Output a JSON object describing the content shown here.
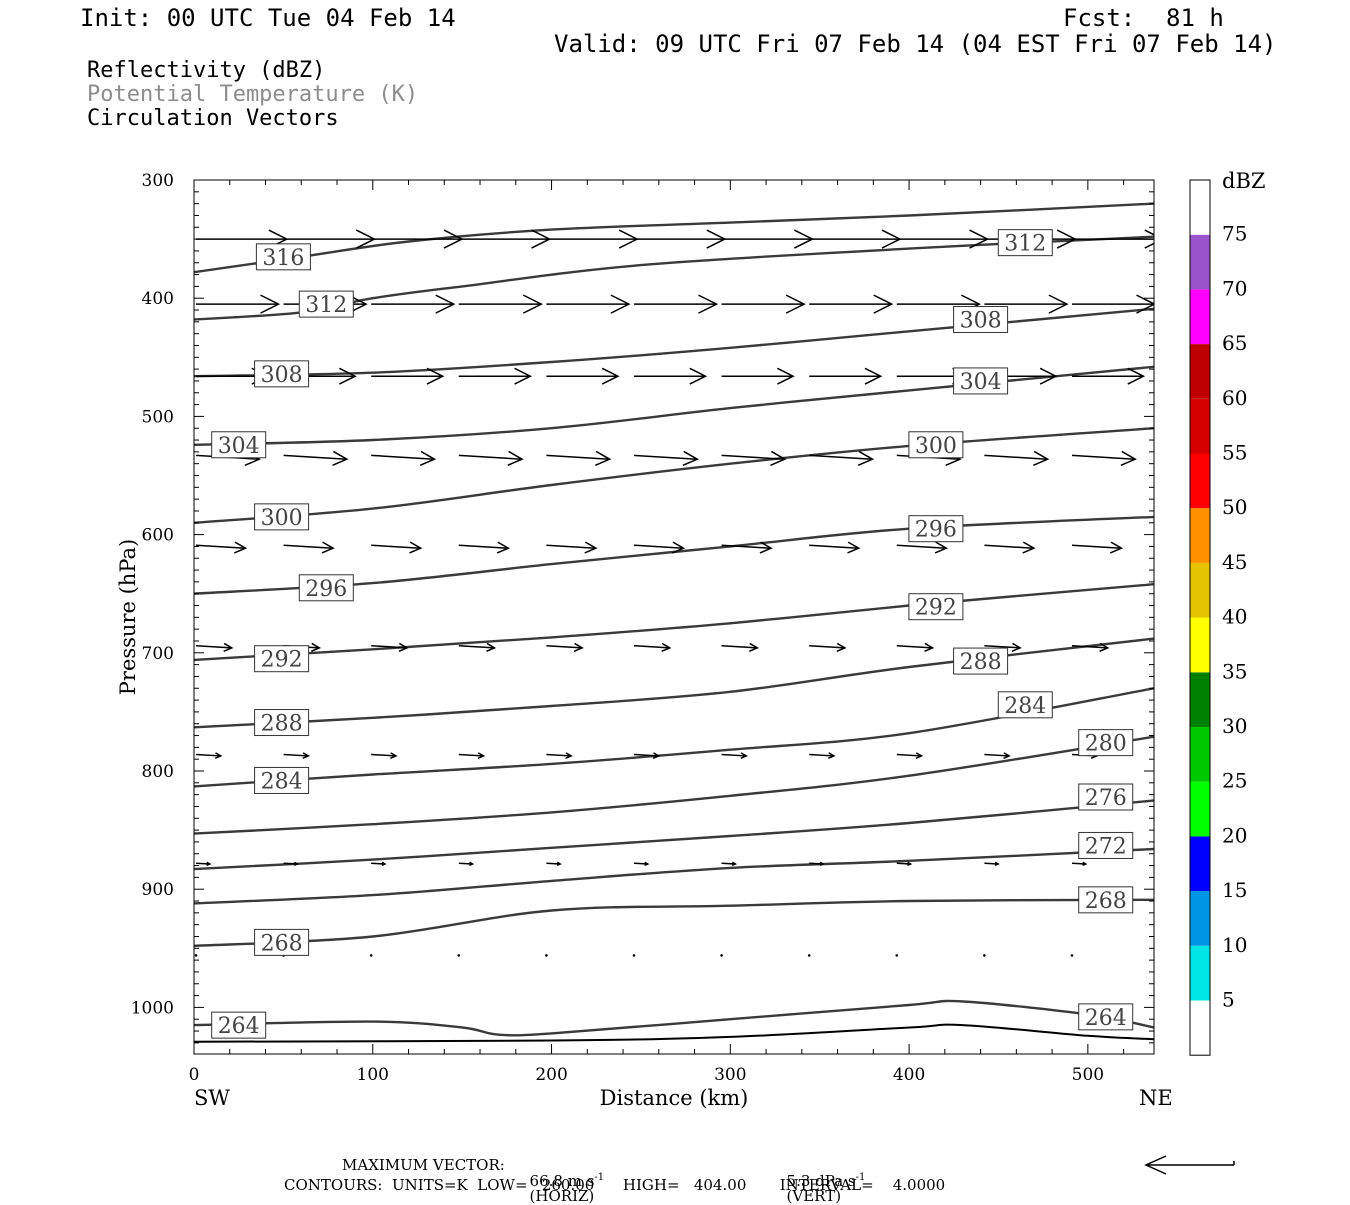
{
  "header": {
    "init": "Init: 00 UTC Tue 04 Feb 14",
    "fcst_label": "Fcst:",
    "fcst_value": "81 h",
    "valid": "Valid: 09 UTC Fri 07 Feb 14 (04 EST Fri 07 Feb 14)"
  },
  "fields": {
    "reflectivity": "Reflectivity (dBZ)",
    "theta": "Potential Temperature (K)",
    "vectors": "Circulation Vectors"
  },
  "colors": {
    "theta_label": "#8c8c8c",
    "contour": "#3a3a3a",
    "vector": "#000000"
  },
  "chart_data": {
    "type": "contour",
    "xlabel": "Distance (km)",
    "ylabel": "Pressure (hPa)",
    "xlim": [
      0,
      537
    ],
    "ylim": [
      300,
      1040
    ],
    "y_scale": "linear, inverted",
    "x_ticks": [
      "0",
      "100",
      "200",
      "300",
      "400",
      "500"
    ],
    "y_ticks": [
      "300",
      "400",
      "500",
      "600",
      "700",
      "800",
      "900",
      "1000"
    ],
    "x_end_labels": {
      "left": "SW",
      "right": "NE"
    },
    "contours": [
      {
        "level": 316,
        "x": [
          0,
          60,
          120,
          200,
          300,
          400,
          537
        ],
        "p": [
          378,
          365,
          352,
          342,
          336,
          330,
          320
        ],
        "labels": [
          [
            50,
            365
          ]
        ]
      },
      {
        "level": 312,
        "x": [
          0,
          60,
          100,
          150,
          250,
          400,
          537
        ],
        "p": [
          418,
          412,
          400,
          390,
          372,
          358,
          348
        ],
        "labels": [
          [
            74,
            405
          ],
          [
            465,
            353
          ]
        ]
      },
      {
        "level": 308,
        "x": [
          0,
          100,
          200,
          300,
          400,
          537
        ],
        "p": [
          466,
          463,
          454,
          442,
          428,
          409
        ],
        "labels": [
          [
            49,
            464
          ],
          [
            440,
            418
          ]
        ]
      },
      {
        "level": 304,
        "x": [
          0,
          100,
          200,
          300,
          400,
          537
        ],
        "p": [
          524,
          520,
          510,
          493,
          478,
          458
        ],
        "labels": [
          [
            25,
            524
          ],
          [
            440,
            470
          ]
        ]
      },
      {
        "level": 300,
        "x": [
          0,
          100,
          200,
          300,
          400,
          537
        ],
        "p": [
          590,
          578,
          558,
          540,
          525,
          510
        ],
        "labels": [
          [
            49,
            585
          ],
          [
            415,
            524
          ]
        ]
      },
      {
        "level": 296,
        "x": [
          0,
          100,
          200,
          300,
          400,
          537
        ],
        "p": [
          650,
          641,
          625,
          610,
          595,
          585
        ],
        "labels": [
          [
            74,
            645
          ],
          [
            415,
            595
          ]
        ]
      },
      {
        "level": 292,
        "x": [
          0,
          100,
          200,
          300,
          400,
          537
        ],
        "p": [
          706,
          697,
          687,
          675,
          660,
          642
        ],
        "labels": [
          [
            49,
            705
          ],
          [
            415,
            661
          ]
        ]
      },
      {
        "level": 288,
        "x": [
          0,
          100,
          200,
          300,
          400,
          537
        ],
        "p": [
          763,
          755,
          745,
          733,
          712,
          688
        ],
        "labels": [
          [
            49,
            759
          ],
          [
            440,
            707
          ]
        ]
      },
      {
        "level": 284,
        "x": [
          0,
          100,
          200,
          300,
          400,
          537
        ],
        "p": [
          813,
          803,
          794,
          782,
          768,
          730
        ],
        "labels": [
          [
            49,
            808
          ],
          [
            465,
            744
          ]
        ]
      },
      {
        "level": 280,
        "x": [
          0,
          100,
          200,
          300,
          400,
          537
        ],
        "p": [
          853,
          845,
          835,
          821,
          804,
          771
        ],
        "labels": [
          [
            510,
            776
          ]
        ]
      },
      {
        "level": 276,
        "x": [
          0,
          100,
          200,
          300,
          400,
          537
        ],
        "p": [
          883,
          875,
          865,
          855,
          844,
          825
        ],
        "labels": [
          [
            510,
            822
          ]
        ]
      },
      {
        "level": 272,
        "x": [
          0,
          100,
          200,
          300,
          400,
          537
        ],
        "p": [
          912,
          905,
          893,
          882,
          876,
          866
        ],
        "labels": [
          [
            510,
            863
          ]
        ]
      },
      {
        "level": 268,
        "x": [
          0,
          100,
          200,
          300,
          400,
          537
        ],
        "p": [
          948,
          940,
          918,
          914,
          910,
          909
        ],
        "labels": [
          [
            49,
            945
          ],
          [
            510,
            909
          ]
        ]
      },
      {
        "level": 264,
        "x": [
          0,
          100,
          150,
          170,
          200,
          300,
          400,
          430,
          500,
          537
        ],
        "p": [
          1015,
          1012,
          1017,
          1023,
          1022,
          1010,
          998,
          995,
          1006,
          1017
        ],
        "labels": [
          [
            25,
            1015
          ],
          [
            510,
            1008
          ]
        ]
      }
    ],
    "vectors": {
      "rows_p": [
        350,
        405,
        466,
        533,
        609,
        694,
        786,
        878,
        956
      ],
      "cols_x": [
        0,
        49,
        98,
        147,
        196,
        245,
        294,
        343,
        392,
        441,
        490
      ],
      "u_scale": [
        16.5,
        15,
        13,
        11.5,
        9,
        6.5,
        4.5,
        2.5,
        0.3
      ],
      "maximum_vector_horiz": "66.8 m s-1 (HORIZ)",
      "maximum_vector_vert": "5.3 dPa s-1 (VERT)"
    },
    "colorbar": {
      "label": "dBZ",
      "levels": [
        "5",
        "10",
        "15",
        "20",
        "25",
        "30",
        "35",
        "40",
        "45",
        "50",
        "55",
        "60",
        "65",
        "70",
        "75"
      ],
      "colors": [
        "#ffffff",
        "#00e6e6",
        "#0096e6",
        "#0000ff",
        "#00ff00",
        "#00c800",
        "#008000",
        "#ffff00",
        "#e6c300",
        "#ff9100",
        "#ff0000",
        "#d70000",
        "#bf0000",
        "#ff00ff",
        "#9955c9",
        "#ffffff"
      ]
    }
  },
  "footer": {
    "max_vector_label": "MAXIMUM VECTOR:",
    "max_vector_horiz": "66.8 m s",
    "max_vector_horiz_unit": "(HORIZ)",
    "max_vector_vert": "5.3 dPa s",
    "max_vector_vert_unit": "(VERT)",
    "exponent": "-1",
    "contours": "CONTOURS:  UNITS=K  LOW=   260.00      HIGH=   404.00       INTERVAL=    4.0000"
  }
}
